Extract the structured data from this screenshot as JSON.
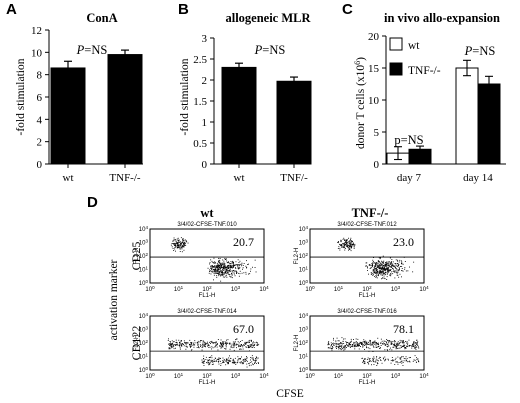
{
  "chart_data": [
    {
      "panel": "A",
      "type": "bar",
      "title": "ConA",
      "categories": [
        "wt",
        "TNF-/-"
      ],
      "values": [
        8.6,
        9.8
      ],
      "errors": [
        0.6,
        0.4
      ],
      "ylabel": "-fold stimulation",
      "xlabel": "",
      "ylim": [
        0,
        12
      ],
      "yticks": [
        "0",
        "2",
        "4",
        "6",
        "8",
        "10",
        "12"
      ],
      "annotation": "P=NS",
      "color": "#000000"
    },
    {
      "panel": "B",
      "type": "bar",
      "title": "allogeneic MLR",
      "categories": [
        "wt",
        "TNF/-"
      ],
      "values": [
        2.3,
        1.97
      ],
      "errors": [
        0.1,
        0.1
      ],
      "ylabel": "-fold stimulation",
      "xlabel": "",
      "ylim": [
        0,
        3
      ],
      "yticks": [
        "0",
        "0.5",
        "1",
        "1.5",
        "2",
        "2.5",
        "3"
      ],
      "annotation": "P=NS",
      "color": "#000000"
    },
    {
      "panel": "C",
      "type": "bar",
      "title": "in vivo allo-expansion",
      "categories": [
        "day 7",
        "day 14"
      ],
      "series": [
        {
          "name": "wt",
          "values": [
            1.7,
            15.0
          ],
          "errors": [
            1.0,
            1.2
          ],
          "color": "#ffffff"
        },
        {
          "name": "TNF-/-",
          "values": [
            2.3,
            12.5
          ],
          "errors": [
            0.5,
            1.2
          ],
          "color": "#000000"
        }
      ],
      "ylabel": "donor T cells (x10",
      "ylabel_sup": "6",
      "ylabel_end": ")",
      "ylim": [
        0,
        20
      ],
      "yticks": [
        "0",
        "5",
        "10",
        "15",
        "20"
      ],
      "annotations": [
        "p=NS",
        "P=NS"
      ],
      "legend_position": "top-left"
    },
    {
      "panel": "D",
      "type": "scatter",
      "column_titles": [
        "wt",
        "TNF-/-"
      ],
      "row_markers": [
        "CD25",
        "CD122"
      ],
      "ylabel": "activation marker",
      "xlabel": "CFSE",
      "plot_xlabel": "FL1-H",
      "plot_ylabel": "FL2-H",
      "decade_ticks": [
        "10",
        "10",
        "10",
        "10",
        "10"
      ],
      "decade_exponents": [
        "0",
        "1",
        "2",
        "3",
        "4"
      ],
      "plots": [
        {
          "file": "3/4/02-CFSE-TNF.010",
          "percent": "20.7"
        },
        {
          "file": "3/4/02-CFSE-TNF.012",
          "percent": "23.0"
        },
        {
          "file": "3/4/02-CFSE-TNF.014",
          "percent": "67.0"
        },
        {
          "file": "3/4/02-CFSE-TNF.016",
          "percent": "78.1"
        }
      ]
    }
  ]
}
